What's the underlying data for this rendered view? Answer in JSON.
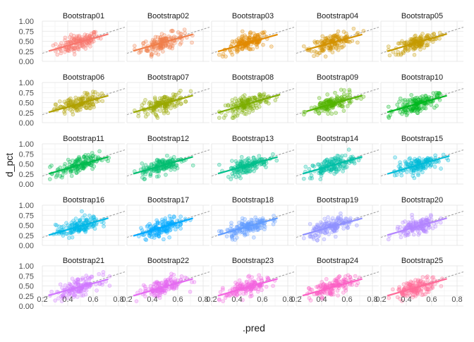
{
  "chart_data": {
    "type": "scatter",
    "facet_layout": "5x5 grid, shared axes",
    "xlabel": ".pred",
    "ylabel": "d_pct",
    "xlim": [
      0.2,
      0.85
    ],
    "ylim": [
      0.0,
      1.0
    ],
    "x_ticks": [
      0.2,
      0.4,
      0.6,
      0.8
    ],
    "y_ticks": [
      0.0,
      0.25,
      0.5,
      0.75,
      1.0
    ],
    "x_tick_labels": [
      "0.2",
      "0.4",
      "0.6",
      "0.8"
    ],
    "y_tick_labels": [
      "0.00",
      "0.25",
      "0.50",
      "0.75",
      "1.00"
    ],
    "grid": true,
    "legend": "none",
    "reference_line": {
      "style": "dashed",
      "color": "#9e9e9e",
      "slope": 1,
      "intercept": 0
    },
    "points_per_panel": 150,
    "panels": [
      {
        "label": "Bootstrap01",
        "color": "#F8766D",
        "fit": {
          "slope": 0.9,
          "intercept": 0.03,
          "x_range": [
            0.25,
            0.72
          ]
        }
      },
      {
        "label": "Bootstrap02",
        "color": "#F07F4A",
        "fit": {
          "slope": 0.88,
          "intercept": 0.04,
          "x_range": [
            0.25,
            0.72
          ]
        }
      },
      {
        "label": "Bootstrap03",
        "color": "#E28A00",
        "fit": {
          "slope": 0.9,
          "intercept": 0.02,
          "x_range": [
            0.25,
            0.72
          ]
        }
      },
      {
        "label": "Bootstrap04",
        "color": "#D49200",
        "fit": {
          "slope": 0.86,
          "intercept": 0.05,
          "x_range": [
            0.28,
            0.72
          ]
        }
      },
      {
        "label": "Bootstrap05",
        "color": "#C49A00",
        "fit": {
          "slope": 0.92,
          "intercept": 0.02,
          "x_range": [
            0.25,
            0.72
          ]
        }
      },
      {
        "label": "Bootstrap06",
        "color": "#B0A100",
        "fit": {
          "slope": 0.88,
          "intercept": 0.04,
          "x_range": [
            0.25,
            0.72
          ]
        }
      },
      {
        "label": "Bootstrap07",
        "color": "#99A800",
        "fit": {
          "slope": 0.9,
          "intercept": 0.03,
          "x_range": [
            0.25,
            0.72
          ]
        }
      },
      {
        "label": "Bootstrap08",
        "color": "#7CAE00",
        "fit": {
          "slope": 0.92,
          "intercept": 0.02,
          "x_range": [
            0.25,
            0.74
          ]
        }
      },
      {
        "label": "Bootstrap09",
        "color": "#53B400",
        "fit": {
          "slope": 0.9,
          "intercept": 0.03,
          "x_range": [
            0.28,
            0.72
          ]
        }
      },
      {
        "label": "Bootstrap10",
        "color": "#00B81F",
        "fit": {
          "slope": 0.88,
          "intercept": 0.04,
          "x_range": [
            0.25,
            0.72
          ]
        }
      },
      {
        "label": "Bootstrap11",
        "color": "#00BB4E",
        "fit": {
          "slope": 0.9,
          "intercept": 0.03,
          "x_range": [
            0.25,
            0.72
          ]
        }
      },
      {
        "label": "Bootstrap12",
        "color": "#00BE70",
        "fit": {
          "slope": 0.9,
          "intercept": 0.03,
          "x_range": [
            0.25,
            0.72
          ]
        }
      },
      {
        "label": "Bootstrap13",
        "color": "#00C08D",
        "fit": {
          "slope": 0.88,
          "intercept": 0.04,
          "x_range": [
            0.25,
            0.72
          ]
        }
      },
      {
        "label": "Bootstrap14",
        "color": "#00C0A7",
        "fit": {
          "slope": 0.9,
          "intercept": 0.03,
          "x_range": [
            0.25,
            0.72
          ]
        }
      },
      {
        "label": "Bootstrap15",
        "color": "#00BCD8",
        "fit": {
          "slope": 0.92,
          "intercept": 0.02,
          "x_range": [
            0.25,
            0.74
          ]
        }
      },
      {
        "label": "Bootstrap16",
        "color": "#00B8E7",
        "fit": {
          "slope": 0.9,
          "intercept": 0.03,
          "x_range": [
            0.25,
            0.72
          ]
        }
      },
      {
        "label": "Bootstrap17",
        "color": "#00A9FF",
        "fit": {
          "slope": 0.94,
          "intercept": 0.0,
          "x_range": [
            0.25,
            0.72
          ]
        }
      },
      {
        "label": "Bootstrap18",
        "color": "#619CFF",
        "fit": {
          "slope": 0.9,
          "intercept": 0.03,
          "x_range": [
            0.25,
            0.72
          ]
        }
      },
      {
        "label": "Bootstrap19",
        "color": "#8F91FF",
        "fit": {
          "slope": 0.88,
          "intercept": 0.04,
          "x_range": [
            0.25,
            0.72
          ]
        }
      },
      {
        "label": "Bootstrap20",
        "color": "#B385FF",
        "fit": {
          "slope": 0.9,
          "intercept": 0.03,
          "x_range": [
            0.25,
            0.72
          ]
        }
      },
      {
        "label": "Bootstrap21",
        "color": "#D078FF",
        "fit": {
          "slope": 0.86,
          "intercept": 0.05,
          "x_range": [
            0.25,
            0.72
          ]
        }
      },
      {
        "label": "Bootstrap22",
        "color": "#E56BF2",
        "fit": {
          "slope": 0.9,
          "intercept": 0.03,
          "x_range": [
            0.25,
            0.72
          ]
        }
      },
      {
        "label": "Bootstrap23",
        "color": "#F464E0",
        "fit": {
          "slope": 0.9,
          "intercept": 0.03,
          "x_range": [
            0.25,
            0.72
          ]
        }
      },
      {
        "label": "Bootstrap24",
        "color": "#FD61C5",
        "fit": {
          "slope": 0.88,
          "intercept": 0.04,
          "x_range": [
            0.25,
            0.72
          ]
        }
      },
      {
        "label": "Bootstrap25",
        "color": "#FF6A98",
        "fit": {
          "slope": 0.9,
          "intercept": 0.03,
          "x_range": [
            0.25,
            0.72
          ]
        }
      }
    ]
  }
}
